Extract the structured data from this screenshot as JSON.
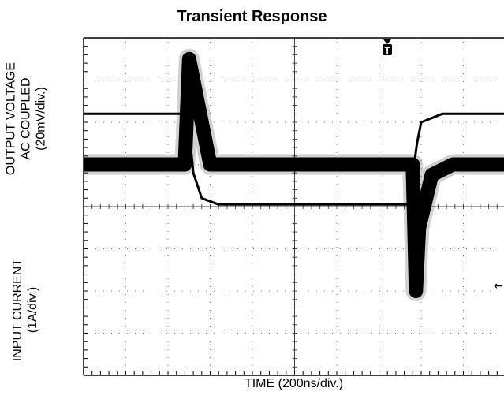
{
  "chart_data": {
    "type": "line",
    "title": "Transient Response",
    "xlabel": "TIME (200ns/div.)",
    "top_ylabel": [
      "OUTPUT VOLTAGE",
      "AC COUPLED",
      "(20mV/div.)"
    ],
    "bottom_ylabel": [
      "INPUT CURRENT",
      "(1A/div.)"
    ],
    "trigger_marker": "T",
    "x_unit": "ns",
    "grid": true,
    "x_divisions": 10,
    "y_divisions": 8,
    "xlim": [
      0,
      2000
    ],
    "series": [
      {
        "channel": "output_voltage",
        "unit": "mV",
        "ylim": [
          -100,
          60
        ],
        "x": [
          0,
          480,
          500,
          530,
          600,
          700,
          1000,
          1500,
          1560,
          1575,
          1590,
          1650,
          1750,
          2000
        ],
        "y": [
          0,
          0,
          50,
          35,
          0,
          0,
          0,
          0,
          0,
          -60,
          -30,
          -5,
          0,
          0
        ]
      },
      {
        "channel": "input_current",
        "unit": "A",
        "ylim": [
          -4,
          4
        ],
        "x": [
          0,
          480,
          500,
          520,
          560,
          640,
          1000,
          1500,
          1540,
          1580,
          1600,
          1700,
          2000
        ],
        "y": [
          2.2,
          2.2,
          1.8,
          0.8,
          0.2,
          0.05,
          0.05,
          0.05,
          0.05,
          1.5,
          2.0,
          2.2,
          2.2
        ]
      }
    ]
  }
}
